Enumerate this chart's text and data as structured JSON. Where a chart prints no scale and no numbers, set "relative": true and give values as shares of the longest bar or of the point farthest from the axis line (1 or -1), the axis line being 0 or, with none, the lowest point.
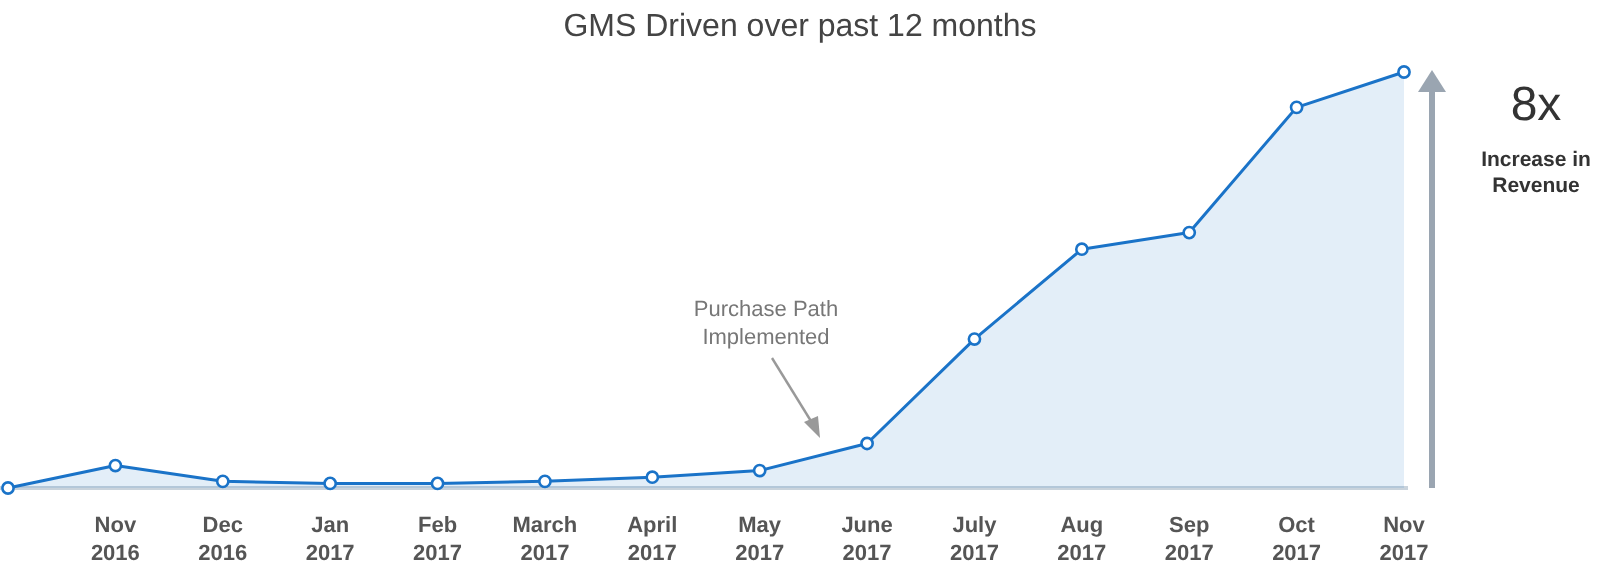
{
  "chart_data": {
    "type": "area",
    "title": "GMS Driven over past 12 months",
    "relative": true,
    "categories": [
      null,
      "Nov 2016",
      "Dec 2016",
      "Jan 2017",
      "Feb 2017",
      "March 2017",
      "April 2017",
      "May 2017",
      "June 2017",
      "July 2017",
      "Aug 2017",
      "Sep 2017",
      "Oct 2017",
      "Nov 2017"
    ],
    "series": [
      {
        "color": "#1a73c8",
        "values": [
          0,
          0.054,
          0.016,
          0.011,
          0.011,
          0.016,
          0.026,
          0.042,
          0.107,
          0.358,
          0.574,
          0.614,
          0.915,
          1
        ]
      }
    ],
    "marker": "circle",
    "annotations": [
      "Purchase Path Implemented",
      "8x",
      "Increase in Revenue"
    ]
  }
}
